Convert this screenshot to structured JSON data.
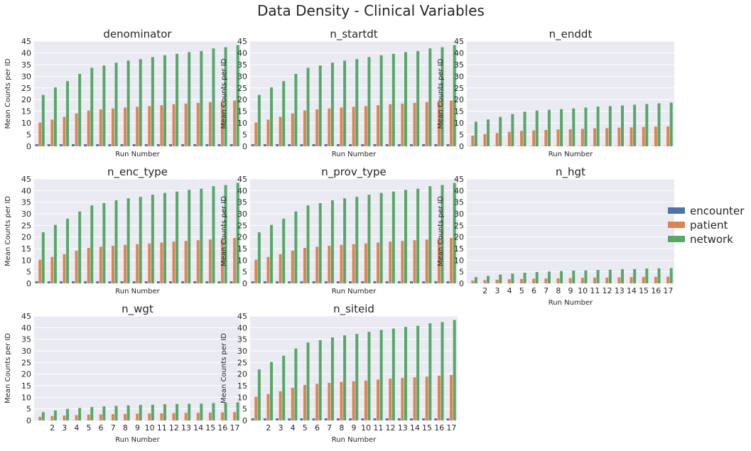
{
  "suptitle": "Data Density - Clinical Variables",
  "colors": {
    "encounter": "#4c72b0",
    "patient": "#dd8452",
    "network": "#55a868",
    "panel_bg": "#eaeaf2",
    "grid": "#ffffff"
  },
  "legend": {
    "placement": "right",
    "entries": [
      "encounter",
      "patient",
      "network"
    ]
  },
  "chart_data": [
    {
      "type": "bar",
      "title": "denominator",
      "xlabel": "Run Number",
      "ylabel": "Mean Counts per ID",
      "categories": [
        "1",
        "2",
        "3",
        "4",
        "5",
        "6",
        "7",
        "8",
        "9",
        "10",
        "11",
        "12",
        "13",
        "14",
        "15",
        "16",
        "17"
      ],
      "ylim": [
        0,
        45
      ],
      "yticks": [
        0,
        5,
        10,
        15,
        20,
        25,
        30,
        35,
        40,
        45
      ],
      "grid": true,
      "show_xticks": false,
      "show_ylabel": true,
      "series": [
        {
          "name": "encounter",
          "values": [
            0.9,
            0.9,
            0.9,
            0.9,
            0.9,
            0.9,
            0.9,
            0.9,
            0.9,
            0.9,
            0.9,
            0.9,
            0.9,
            0.9,
            0.9,
            0.9,
            0.9
          ]
        },
        {
          "name": "patient",
          "values": [
            10.2,
            11.4,
            12.6,
            14.1,
            15.3,
            15.8,
            16.2,
            16.6,
            16.9,
            17.2,
            17.6,
            18.0,
            18.3,
            18.6,
            18.9,
            19.3,
            19.6
          ]
        },
        {
          "name": "network",
          "values": [
            22.0,
            25.2,
            27.9,
            31.0,
            33.6,
            34.6,
            35.8,
            36.7,
            37.3,
            38.2,
            39.0,
            39.6,
            40.3,
            40.8,
            41.9,
            42.4,
            43.3
          ]
        }
      ]
    },
    {
      "type": "bar",
      "title": "n_startdt",
      "xlabel": "Run Number",
      "ylabel": "Mean Counts per ID",
      "categories": [
        "1",
        "2",
        "3",
        "4",
        "5",
        "6",
        "7",
        "8",
        "9",
        "10",
        "11",
        "12",
        "13",
        "14",
        "15",
        "16",
        "17"
      ],
      "ylim": [
        0,
        45
      ],
      "yticks": [
        0,
        5,
        10,
        15,
        20,
        25,
        30,
        35,
        40,
        45
      ],
      "grid": true,
      "show_xticks": false,
      "show_ylabel": true,
      "series": [
        {
          "name": "encounter",
          "values": [
            0.9,
            0.9,
            0.9,
            0.9,
            0.9,
            0.9,
            0.9,
            0.9,
            0.9,
            0.9,
            0.9,
            0.9,
            0.9,
            0.9,
            0.9,
            0.9,
            0.9
          ]
        },
        {
          "name": "patient",
          "values": [
            10.2,
            11.4,
            12.6,
            14.1,
            15.3,
            15.8,
            16.2,
            16.6,
            16.9,
            17.2,
            17.6,
            18.0,
            18.3,
            18.6,
            18.9,
            19.3,
            19.6
          ]
        },
        {
          "name": "network",
          "values": [
            22.0,
            25.2,
            27.9,
            31.0,
            33.6,
            34.6,
            35.8,
            36.7,
            37.3,
            38.2,
            39.0,
            39.6,
            40.3,
            40.8,
            41.9,
            42.4,
            43.3
          ]
        }
      ]
    },
    {
      "type": "bar",
      "title": "n_enddt",
      "xlabel": "Run Number",
      "ylabel": "Mean Counts per ID",
      "categories": [
        "1",
        "2",
        "3",
        "4",
        "5",
        "6",
        "7",
        "8",
        "9",
        "10",
        "11",
        "12",
        "13",
        "14",
        "15",
        "16",
        "17"
      ],
      "ylim": [
        0,
        45
      ],
      "yticks": [
        0,
        5,
        10,
        15,
        20,
        25,
        30,
        35,
        40,
        45
      ],
      "grid": true,
      "show_xticks": false,
      "show_ylabel": true,
      "series": [
        {
          "name": "encounter",
          "values": [
            0.1,
            0.1,
            0.1,
            0.1,
            0.1,
            0.1,
            0.1,
            0.1,
            0.1,
            0.1,
            0.1,
            0.1,
            0.1,
            0.1,
            0.1,
            0.1,
            0.1
          ]
        },
        {
          "name": "patient",
          "values": [
            4.6,
            5.2,
            5.7,
            6.2,
            6.6,
            6.8,
            7.0,
            7.2,
            7.3,
            7.5,
            7.7,
            7.8,
            8.0,
            8.1,
            8.3,
            8.4,
            8.5
          ]
        },
        {
          "name": "network",
          "values": [
            10.5,
            11.5,
            12.6,
            13.8,
            14.8,
            15.3,
            15.6,
            15.9,
            16.2,
            16.6,
            17.0,
            17.2,
            17.5,
            17.8,
            18.1,
            18.4,
            18.7
          ]
        }
      ]
    },
    {
      "type": "bar",
      "title": "n_enc_type",
      "xlabel": "Run Number",
      "ylabel": "Mean Counts per ID",
      "categories": [
        "1",
        "2",
        "3",
        "4",
        "5",
        "6",
        "7",
        "8",
        "9",
        "10",
        "11",
        "12",
        "13",
        "14",
        "15",
        "16",
        "17"
      ],
      "ylim": [
        0,
        45
      ],
      "yticks": [
        0,
        5,
        10,
        15,
        20,
        25,
        30,
        35,
        40,
        45
      ],
      "grid": true,
      "show_xticks": false,
      "show_ylabel": true,
      "series": [
        {
          "name": "encounter",
          "values": [
            0.9,
            0.9,
            0.9,
            0.9,
            0.9,
            0.9,
            0.9,
            0.9,
            0.9,
            0.9,
            0.9,
            0.9,
            0.9,
            0.9,
            0.9,
            0.9,
            0.9
          ]
        },
        {
          "name": "patient",
          "values": [
            10.2,
            11.4,
            12.6,
            14.1,
            15.3,
            15.8,
            16.2,
            16.6,
            16.9,
            17.2,
            17.6,
            18.0,
            18.3,
            18.6,
            18.9,
            19.3,
            19.6
          ]
        },
        {
          "name": "network",
          "values": [
            22.0,
            25.2,
            27.9,
            31.0,
            33.6,
            34.6,
            35.8,
            36.7,
            37.3,
            38.2,
            39.0,
            39.6,
            40.3,
            40.8,
            41.9,
            42.4,
            43.3
          ]
        }
      ]
    },
    {
      "type": "bar",
      "title": "n_prov_type",
      "xlabel": "Run Number",
      "ylabel": "Mean Counts per ID",
      "categories": [
        "1",
        "2",
        "3",
        "4",
        "5",
        "6",
        "7",
        "8",
        "9",
        "10",
        "11",
        "12",
        "13",
        "14",
        "15",
        "16",
        "17"
      ],
      "ylim": [
        0,
        45
      ],
      "yticks": [
        0,
        5,
        10,
        15,
        20,
        25,
        30,
        35,
        40,
        45
      ],
      "grid": true,
      "show_xticks": false,
      "show_ylabel": true,
      "series": [
        {
          "name": "encounter",
          "values": [
            0.9,
            0.9,
            0.9,
            0.9,
            0.9,
            0.9,
            0.9,
            0.9,
            0.9,
            0.9,
            0.9,
            0.9,
            0.9,
            0.9,
            0.9,
            0.9,
            0.9
          ]
        },
        {
          "name": "patient",
          "values": [
            10.2,
            11.4,
            12.6,
            14.1,
            15.3,
            15.8,
            16.2,
            16.6,
            16.9,
            17.2,
            17.6,
            18.0,
            18.3,
            18.6,
            18.9,
            19.3,
            19.6
          ]
        },
        {
          "name": "network",
          "values": [
            22.0,
            25.2,
            27.9,
            31.0,
            33.6,
            34.6,
            35.8,
            36.7,
            37.3,
            38.2,
            39.0,
            39.6,
            40.3,
            40.8,
            41.9,
            42.4,
            43.3
          ]
        }
      ]
    },
    {
      "type": "bar",
      "title": "n_hgt",
      "xlabel": "Run Number",
      "ylabel": "Mean Counts per ID",
      "categories": [
        "1",
        "2",
        "3",
        "4",
        "5",
        "6",
        "7",
        "8",
        "9",
        "10",
        "11",
        "12",
        "13",
        "14",
        "15",
        "16",
        "17"
      ],
      "ylim": [
        0,
        45
      ],
      "yticks": [
        0,
        5,
        10,
        15,
        20,
        25,
        30,
        35,
        40,
        45
      ],
      "grid": true,
      "show_xticks": true,
      "show_ylabel": true,
      "series": [
        {
          "name": "encounter",
          "values": [
            0.05,
            0.05,
            0.05,
            0.05,
            0.05,
            0.05,
            0.05,
            0.05,
            0.05,
            0.05,
            0.05,
            0.05,
            0.05,
            0.05,
            0.05,
            0.05,
            0.05
          ]
        },
        {
          "name": "patient",
          "values": [
            1.2,
            1.4,
            1.6,
            1.8,
            1.9,
            2.0,
            2.1,
            2.2,
            2.3,
            2.4,
            2.5,
            2.5,
            2.6,
            2.7,
            2.8,
            2.8,
            2.9
          ]
        },
        {
          "name": "network",
          "values": [
            2.7,
            3.2,
            3.8,
            4.2,
            4.6,
            4.9,
            5.1,
            5.3,
            5.5,
            5.6,
            5.8,
            5.9,
            6.1,
            6.2,
            6.4,
            6.5,
            6.6
          ]
        }
      ]
    },
    {
      "type": "bar",
      "title": "n_wgt",
      "xlabel": "Run Number",
      "ylabel": "Mean Counts per ID",
      "categories": [
        "1",
        "2",
        "3",
        "4",
        "5",
        "6",
        "7",
        "8",
        "9",
        "10",
        "11",
        "12",
        "13",
        "14",
        "15",
        "16",
        "17"
      ],
      "ylim": [
        0,
        45
      ],
      "yticks": [
        0,
        5,
        10,
        15,
        20,
        25,
        30,
        35,
        40,
        45
      ],
      "grid": true,
      "show_xticks": true,
      "show_ylabel": true,
      "series": [
        {
          "name": "encounter",
          "values": [
            0.05,
            0.05,
            0.05,
            0.05,
            0.05,
            0.05,
            0.05,
            0.05,
            0.05,
            0.05,
            0.05,
            0.05,
            0.05,
            0.05,
            0.05,
            0.05,
            0.05
          ]
        },
        {
          "name": "patient",
          "values": [
            1.6,
            1.9,
            2.1,
            2.3,
            2.5,
            2.6,
            2.7,
            2.8,
            2.9,
            3.0,
            3.1,
            3.2,
            3.3,
            3.3,
            3.4,
            3.5,
            3.6
          ]
        },
        {
          "name": "network",
          "values": [
            3.6,
            4.3,
            5.0,
            5.4,
            5.8,
            6.1,
            6.3,
            6.5,
            6.7,
            6.8,
            7.0,
            7.1,
            7.2,
            7.3,
            7.5,
            7.6,
            7.8
          ]
        }
      ]
    },
    {
      "type": "bar",
      "title": "n_siteid",
      "xlabel": "Run Number",
      "ylabel": "Mean Counts per ID",
      "categories": [
        "1",
        "2",
        "3",
        "4",
        "5",
        "6",
        "7",
        "8",
        "9",
        "10",
        "11",
        "12",
        "13",
        "14",
        "15",
        "16",
        "17"
      ],
      "ylim": [
        0,
        45
      ],
      "yticks": [
        0,
        5,
        10,
        15,
        20,
        25,
        30,
        35,
        40,
        45
      ],
      "grid": true,
      "show_xticks": true,
      "show_ylabel": true,
      "series": [
        {
          "name": "encounter",
          "values": [
            0.9,
            0.9,
            0.9,
            0.9,
            0.9,
            0.9,
            0.9,
            0.9,
            0.9,
            0.9,
            0.9,
            0.9,
            0.9,
            0.9,
            0.9,
            0.9,
            0.9
          ]
        },
        {
          "name": "patient",
          "values": [
            10.2,
            11.4,
            12.6,
            14.1,
            15.3,
            15.8,
            16.2,
            16.6,
            16.9,
            17.2,
            17.6,
            18.0,
            18.3,
            18.6,
            18.9,
            19.3,
            19.6
          ]
        },
        {
          "name": "network",
          "values": [
            22.0,
            25.2,
            27.9,
            31.0,
            33.6,
            34.6,
            35.8,
            36.7,
            37.3,
            38.2,
            39.0,
            39.6,
            40.3,
            40.8,
            41.9,
            42.4,
            43.3
          ]
        }
      ]
    }
  ]
}
